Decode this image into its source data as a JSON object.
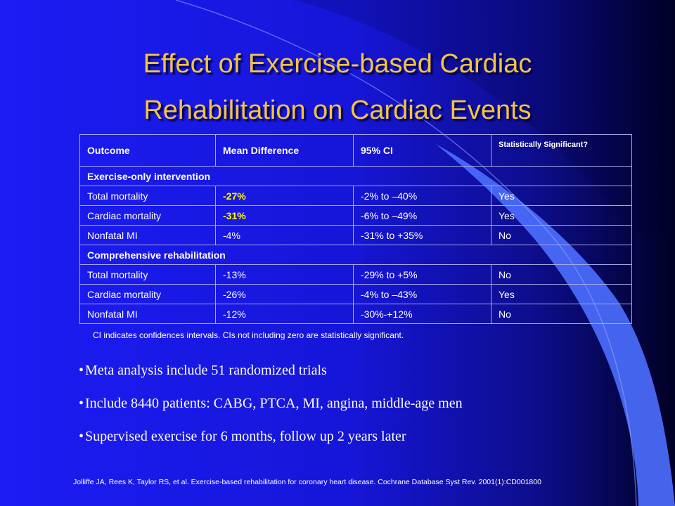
{
  "title": {
    "line1": "Effect of Exercise-based Cardiac",
    "line2": "Rehabilitation on Cardiac Events"
  },
  "table": {
    "headers": [
      "Outcome",
      "Mean Difference",
      "95% CI",
      "Statistically Significant?"
    ],
    "sections": [
      {
        "label": "Exercise-only intervention",
        "rows": [
          {
            "outcome": "Total mortality",
            "mean": "-27%",
            "ci": "-2% to –40%",
            "sig": "Yes",
            "highlight": true
          },
          {
            "outcome": "Cardiac mortality",
            "mean": "-31%",
            "ci": "-6% to –49%",
            "sig": "Yes",
            "highlight": true
          },
          {
            "outcome": "Nonfatal MI",
            "mean": "-4%",
            "ci": "-31% to +35%",
            "sig": "No",
            "highlight": false
          }
        ]
      },
      {
        "label": "Comprehensive rehabilitation",
        "rows": [
          {
            "outcome": "Total mortality",
            "mean": "-13%",
            "ci": "-29% to +5%",
            "sig": "No",
            "highlight": false
          },
          {
            "outcome": "Cardiac mortality",
            "mean": "-26%",
            "ci": "-4% to –43%",
            "sig": "Yes",
            "highlight": false
          },
          {
            "outcome": "Nonfatal MI",
            "mean": "-12%",
            "ci": "-30%-+12%",
            "sig": "No",
            "highlight": false
          }
        ]
      }
    ]
  },
  "note": "CI indicates confidences intervals. CIs not including zero are statistically significant.",
  "bullets": [
    "Meta analysis include 51 randomized trials",
    "Include 8440 patients: CABG, PTCA, MI, angina, middle-age men",
    "Supervised exercise for 6 months, follow up 2 years later"
  ],
  "bullet_symbol": "•",
  "citation": "Jolliffe JA, Rees K, Taylor RS, et al. Exercise-based rehabilitation for coronary heart disease. Cochrane Database Syst Rev. 2001(1):CD001800",
  "colors": {
    "title": "#f2c24b",
    "highlight": "#ffff00",
    "background": "#1c1cf4",
    "curve_light": "#4d6fff"
  }
}
